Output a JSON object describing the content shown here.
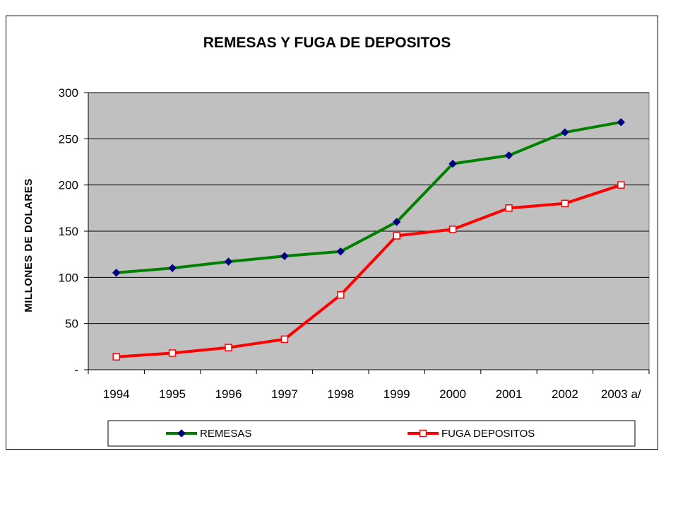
{
  "chart_data": {
    "type": "line",
    "title": "REMESAS Y FUGA DE DEPOSITOS",
    "ylabel": "MILLONES DE DOLARES",
    "xlabel": "",
    "categories": [
      "1994",
      "1995",
      "1996",
      "1997",
      "1998",
      "1999",
      "2000",
      "2001",
      "2002",
      "2003 a/"
    ],
    "ylim": [
      0,
      300
    ],
    "yticks": [
      {
        "value": 0,
        "label": "-"
      },
      {
        "value": 50,
        "label": "50"
      },
      {
        "value": 100,
        "label": "100"
      },
      {
        "value": 150,
        "label": "150"
      },
      {
        "value": 200,
        "label": "200"
      },
      {
        "value": 250,
        "label": "250"
      },
      {
        "value": 300,
        "label": "300"
      }
    ],
    "grid": true,
    "legend_position": "bottom",
    "plot_background": "#C0C0C0",
    "series": [
      {
        "name": "REMESAS",
        "color": "#008000",
        "marker": "diamond",
        "marker_color": "#000080",
        "values": [
          105,
          110,
          117,
          123,
          128,
          160,
          223,
          232,
          257,
          268
        ]
      },
      {
        "name": "FUGA DEPOSITOS",
        "color": "#FF0000",
        "marker": "square",
        "marker_color": "#FFFFFF",
        "values": [
          14,
          18,
          24,
          33,
          81,
          145,
          152,
          175,
          180,
          200
        ]
      }
    ]
  }
}
